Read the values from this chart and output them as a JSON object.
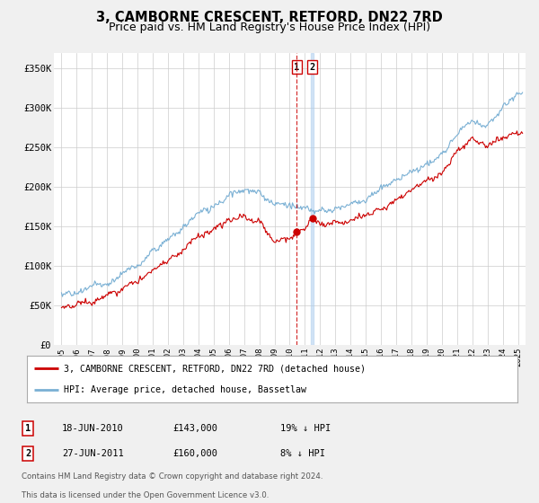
{
  "title": "3, CAMBORNE CRESCENT, RETFORD, DN22 7RD",
  "subtitle": "Price paid vs. HM Land Registry's House Price Index (HPI)",
  "title_fontsize": 10.5,
  "subtitle_fontsize": 9,
  "ylabel_ticks": [
    "£0",
    "£50K",
    "£100K",
    "£150K",
    "£200K",
    "£250K",
    "£300K",
    "£350K"
  ],
  "ylabel_values": [
    0,
    50000,
    100000,
    150000,
    200000,
    250000,
    300000,
    350000
  ],
  "ylim": [
    0,
    370000
  ],
  "xlim_start": 1994.5,
  "xlim_end": 2025.5,
  "red_color": "#cc0000",
  "blue_color": "#7ab0d4",
  "marker1_x": 2010.46,
  "marker1_y": 143000,
  "marker2_x": 2011.49,
  "marker2_y": 160000,
  "legend_line1": "3, CAMBORNE CRESCENT, RETFORD, DN22 7RD (detached house)",
  "legend_line2": "HPI: Average price, detached house, Bassetlaw",
  "table_row1": [
    "1",
    "18-JUN-2010",
    "£143,000",
    "19% ↓ HPI"
  ],
  "table_row2": [
    "2",
    "27-JUN-2011",
    "£160,000",
    "8% ↓ HPI"
  ],
  "footnote1": "Contains HM Land Registry data © Crown copyright and database right 2024.",
  "footnote2": "This data is licensed under the Open Government Licence v3.0.",
  "background_color": "#f0f0f0",
  "plot_background": "#ffffff"
}
